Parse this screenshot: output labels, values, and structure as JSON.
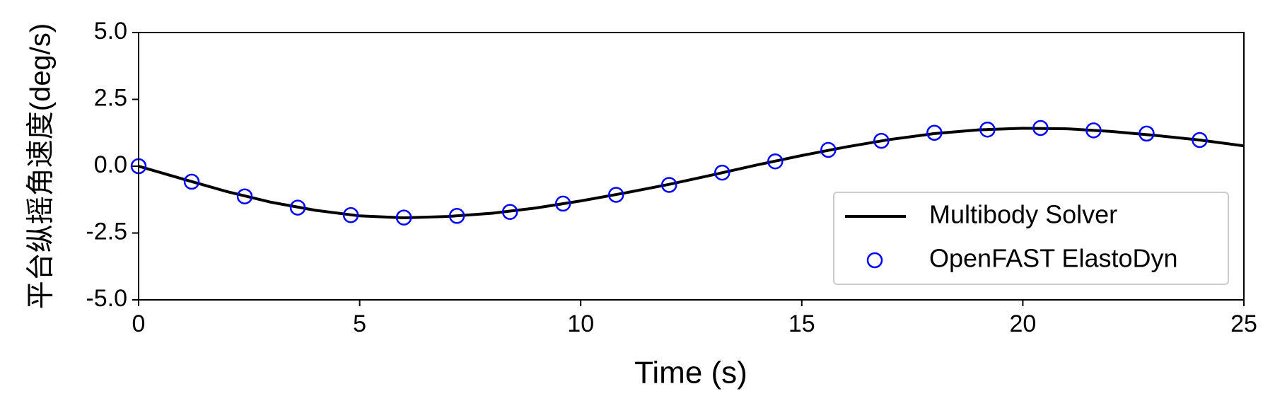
{
  "chart_data": {
    "type": "line",
    "xlabel": "Time (s)",
    "ylabel": "平台纵摇角速度(deg/s)",
    "xlim": [
      0,
      25
    ],
    "xticks": [
      0,
      5,
      10,
      15,
      20,
      25
    ],
    "ylim": [
      -5,
      5
    ],
    "yticks": [
      {
        "value": -5,
        "label": "-5.0"
      },
      {
        "value": -2.5,
        "label": "-2.5"
      },
      {
        "value": 0,
        "label": "0.0"
      },
      {
        "value": 2.5,
        "label": "2.5"
      },
      {
        "value": 5,
        "label": "5.0"
      }
    ],
    "legend": "lower right",
    "series": [
      {
        "name": "Multibody Solver",
        "color": "#000000",
        "style": "line",
        "x": [
          0,
          1,
          2,
          3,
          4,
          5,
          6,
          7,
          8,
          9,
          10,
          11,
          12,
          13,
          14,
          15,
          16,
          17,
          18,
          19,
          20,
          21,
          22,
          23,
          24,
          25
        ],
        "values": [
          0,
          -0.48,
          -0.95,
          -1.35,
          -1.65,
          -1.86,
          -1.93,
          -1.88,
          -1.76,
          -1.56,
          -1.3,
          -1.0,
          -0.68,
          -0.32,
          0.05,
          0.4,
          0.72,
          1.0,
          1.22,
          1.36,
          1.42,
          1.4,
          1.3,
          1.15,
          0.98,
          0.76
        ]
      },
      {
        "name": "OpenFAST ElastoDyn",
        "color": "#0000ff",
        "style": "marker",
        "x": [
          0,
          1.2,
          2.4,
          3.6,
          4.8,
          6.0,
          7.2,
          8.4,
          9.6,
          10.8,
          12.0,
          13.2,
          14.4,
          15.6,
          16.8,
          18.0,
          19.2,
          20.4,
          21.6,
          22.8,
          24.0
        ],
        "values": [
          0,
          -0.58,
          -1.13,
          -1.55,
          -1.83,
          -1.92,
          -1.86,
          -1.71,
          -1.4,
          -1.07,
          -0.7,
          -0.24,
          0.18,
          0.61,
          0.95,
          1.25,
          1.37,
          1.43,
          1.34,
          1.22,
          0.98
        ]
      }
    ]
  }
}
